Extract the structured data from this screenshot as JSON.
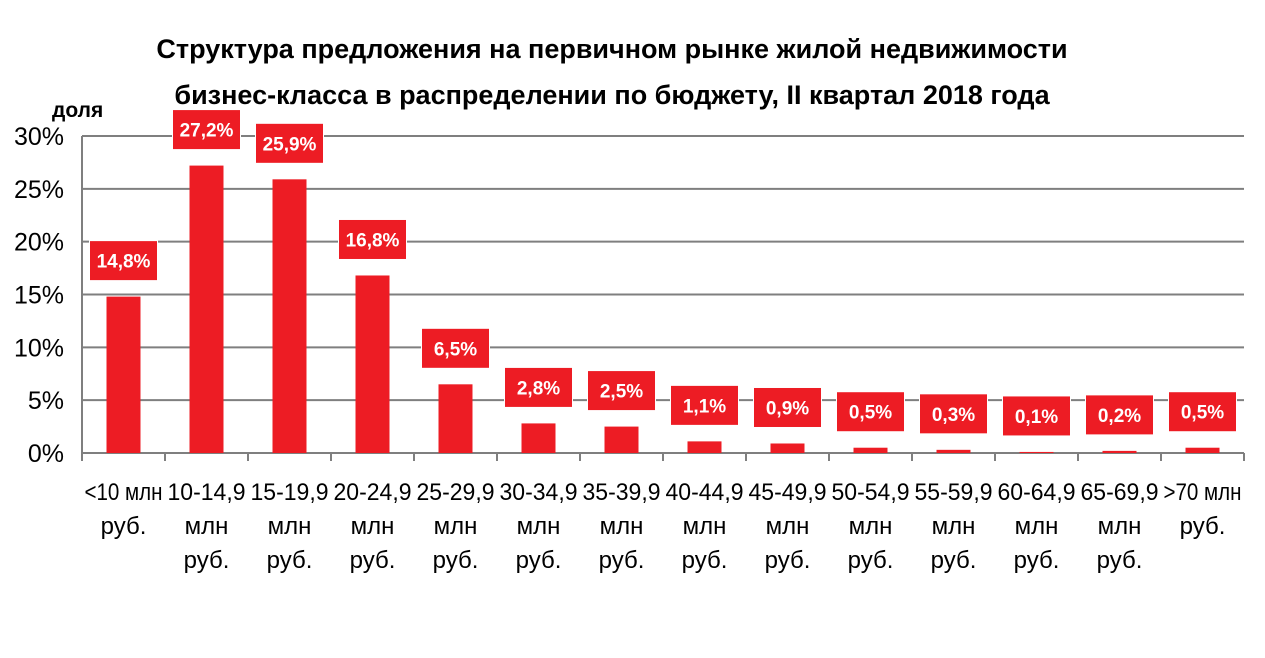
{
  "chart_data": {
    "type": "bar",
    "title_lines": [
      "Структура  предложения на первичном рынке жилой недвижимости",
      "бизнес-класса в распределении по бюджету, II квартал 2018 года"
    ],
    "ylabel": "доля",
    "xlabel": "",
    "ylim": [
      0,
      30
    ],
    "yticks": [
      0,
      5,
      10,
      15,
      20,
      25,
      30
    ],
    "ytick_labels": [
      "0%",
      "5%",
      "10%",
      "15%",
      "20%",
      "25%",
      "30%"
    ],
    "grid": true,
    "bar_color": "#ed1c24",
    "label_box_color": "#ed1c24",
    "label_text_color": "#ffffff",
    "categories": [
      [
        "<10 млн",
        "руб."
      ],
      [
        "10-14,9",
        "млн",
        "руб."
      ],
      [
        "15-19,9",
        "млн",
        "руб."
      ],
      [
        "20-24,9",
        "млн",
        "руб."
      ],
      [
        "25-29,9",
        "млн",
        "руб."
      ],
      [
        "30-34,9",
        "млн",
        "руб."
      ],
      [
        "35-39,9",
        "млн",
        "руб."
      ],
      [
        "40-44,9",
        "млн",
        "руб."
      ],
      [
        "45-49,9",
        "млн",
        "руб."
      ],
      [
        "50-54,9",
        "млн",
        "руб."
      ],
      [
        "55-59,9",
        "млн",
        "руб."
      ],
      [
        "60-64,9",
        "млн",
        "руб."
      ],
      [
        "65-69,9",
        "млн",
        "руб."
      ],
      [
        ">70 млн",
        "руб."
      ]
    ],
    "values": [
      14.8,
      27.2,
      25.9,
      16.8,
      6.5,
      2.8,
      2.5,
      1.1,
      0.9,
      0.5,
      0.3,
      0.1,
      0.2,
      0.5
    ],
    "data_labels": [
      "14,8%",
      "27,2%",
      "25,9%",
      "16,8%",
      "6,5%",
      "2,8%",
      "2,5%",
      "1,1%",
      "0,9%",
      "0,5%",
      "0,3%",
      "0,1%",
      "0,2%",
      "0,5%"
    ]
  }
}
